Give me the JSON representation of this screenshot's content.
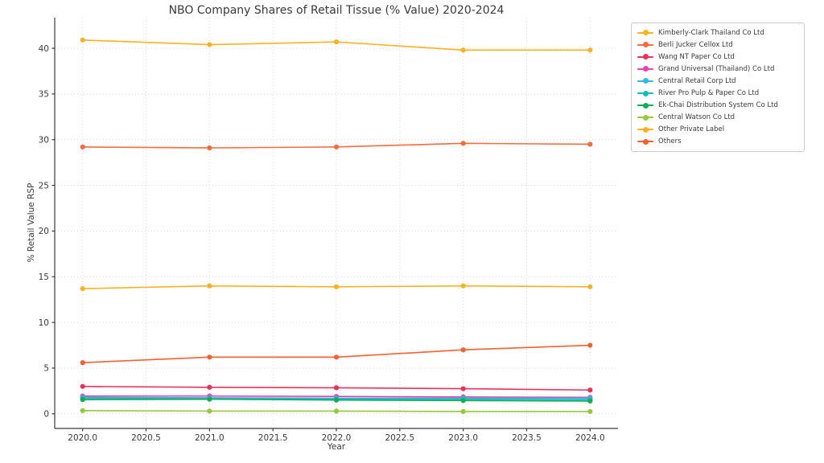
{
  "page": {
    "background": "#ffffff"
  },
  "chart_data": {
    "type": "line",
    "title": "NBO Company Shares of Retail Tissue (% Value) 2020-2024",
    "xlabel": "Year",
    "ylabel": "% Retail Value RSP",
    "x": [
      2020,
      2021,
      2022,
      2023,
      2024
    ],
    "xlim": [
      2019.78,
      2024.22
    ],
    "ylim": [
      -1.6,
      43.35
    ],
    "grid": "dotted, both axes",
    "legend_position": "outside-upper-right",
    "x_ticks": {
      "values": [
        2020.0,
        2020.5,
        2021.0,
        2021.5,
        2022.0,
        2022.5,
        2023.0,
        2023.5,
        2024.0
      ],
      "labels": [
        "2020.0",
        "2020.5",
        "2021.0",
        "2021.5",
        "2022.0",
        "2022.5",
        "2023.0",
        "2023.5",
        "2024.0"
      ]
    },
    "y_ticks": {
      "values": [
        0,
        5,
        10,
        15,
        20,
        25,
        30,
        35,
        40
      ],
      "labels": [
        "0",
        "5",
        "10",
        "15",
        "20",
        "25",
        "30",
        "35",
        "40"
      ]
    },
    "series": [
      {
        "name": "Kimberly-Clark Thailand Co Ltd",
        "color": "#FFB120",
        "values": [
          40.9,
          40.4,
          40.7,
          39.8,
          39.8
        ]
      },
      {
        "name": "Berli Jucker Cellox Ltd",
        "color": "#F96A3D",
        "values": [
          29.2,
          29.1,
          29.2,
          29.6,
          29.5
        ]
      },
      {
        "name": "Wang NT Paper Co Ltd",
        "color": "#EE3058",
        "values": [
          3.0,
          2.9,
          2.85,
          2.75,
          2.6
        ]
      },
      {
        "name": "Grand Universal (Thailand) Co Ltd",
        "color": "#EC3FAE",
        "values": [
          1.95,
          1.95,
          1.9,
          1.85,
          1.8
        ]
      },
      {
        "name": "Central Retail Corp Ltd",
        "color": "#35B6ED",
        "values": [
          1.8,
          1.75,
          1.7,
          1.7,
          1.7
        ]
      },
      {
        "name": "River Pro Pulp & Paper Co Ltd",
        "color": "#16BDB2",
        "values": [
          1.7,
          1.65,
          1.6,
          1.6,
          1.55
        ]
      },
      {
        "name": "Ek-Chai Distribution System Co Ltd",
        "color": "#0FAD58",
        "values": [
          1.55,
          1.6,
          1.5,
          1.45,
          1.4
        ]
      },
      {
        "name": "Central Watson Co Ltd",
        "color": "#96C83D",
        "values": [
          0.35,
          0.3,
          0.3,
          0.25,
          0.25
        ]
      },
      {
        "name": "Other Private Label",
        "color": "#FFB120",
        "values": [
          13.7,
          14.0,
          13.9,
          14.0,
          13.9
        ]
      },
      {
        "name": "Others",
        "color": "#F4612E",
        "values": [
          5.6,
          6.2,
          6.2,
          7.0,
          7.5
        ]
      }
    ]
  }
}
